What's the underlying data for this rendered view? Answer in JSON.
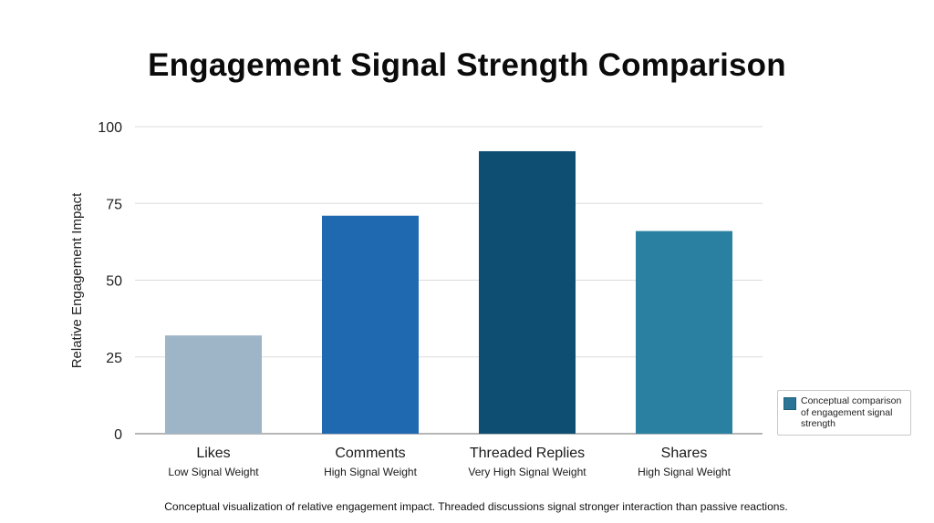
{
  "chart_data": {
    "type": "bar",
    "title": "Engagement Signal Strength Comparison",
    "ylabel": "Relative Engagement Impact",
    "xlabel": "",
    "ylim": [
      0,
      100
    ],
    "yticks": [
      0,
      25,
      50,
      75,
      100
    ],
    "grid": true,
    "categories": [
      "Likes",
      "Comments",
      "Threaded Replies",
      "Shares"
    ],
    "sublabels": [
      "Low Signal Weight",
      "High Signal Weight",
      "Very High Signal Weight",
      "High Signal Weight"
    ],
    "values": [
      32,
      71,
      92,
      66
    ],
    "colors": [
      "#9eb4c7",
      "#1f69b0",
      "#0f4e73",
      "#2a80a0"
    ],
    "legend": {
      "label": "Conceptual comparison of engagement signal strength",
      "color": "#2a7596",
      "position": "bottom-right"
    },
    "caption": "Conceptual visualization of relative engagement impact. Threaded discussions signal stronger interaction than passive reactions."
  }
}
